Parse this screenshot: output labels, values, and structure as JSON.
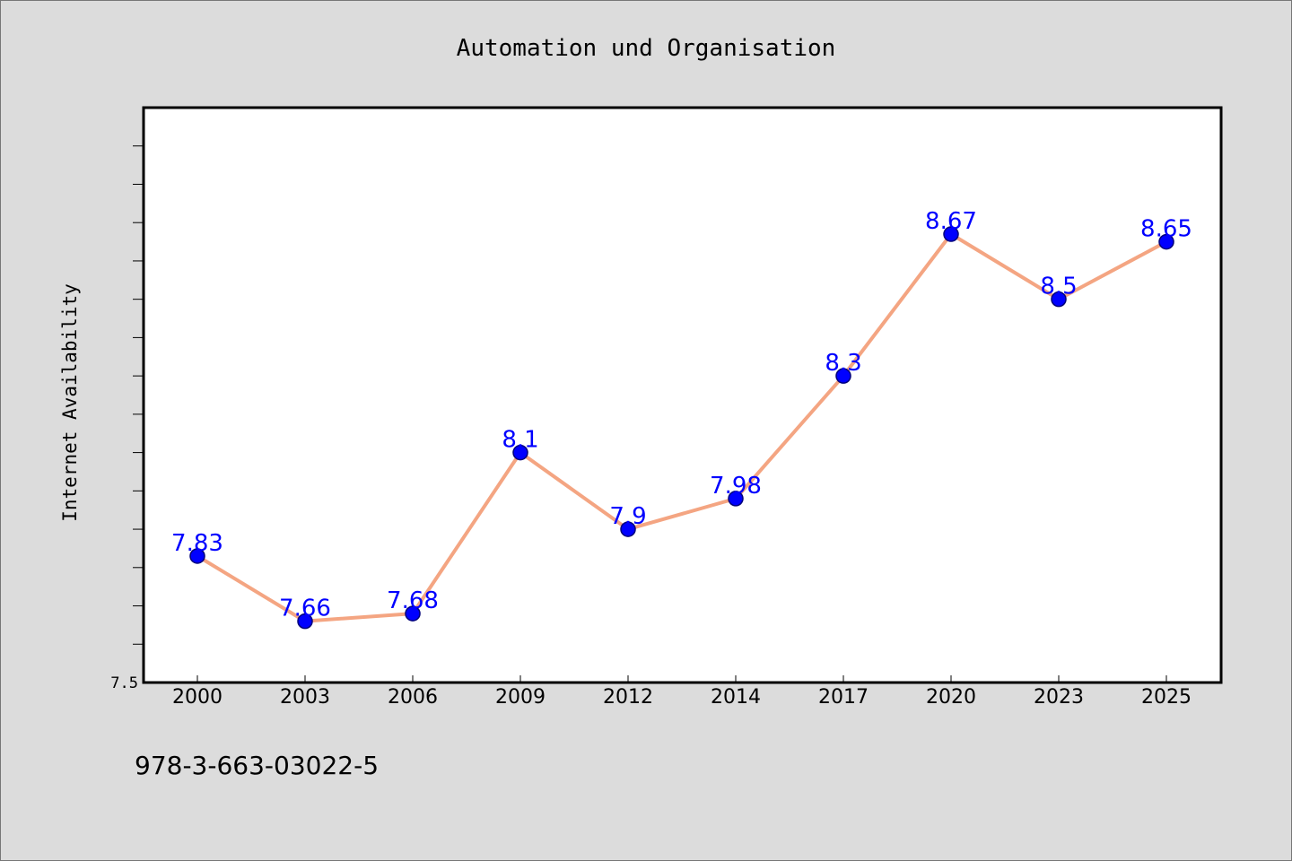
{
  "chart_data": {
    "type": "line",
    "title": "Automation und Organisation",
    "xlabel": "",
    "ylabel": "Internet Availability",
    "categories": [
      "2000",
      "2003",
      "2006",
      "2009",
      "2012",
      "2014",
      "2017",
      "2020",
      "2023",
      "2025"
    ],
    "series": [
      {
        "name": "",
        "values": [
          7.83,
          7.66,
          7.68,
          8.1,
          7.9,
          7.98,
          8.3,
          8.67,
          8.5,
          8.65
        ],
        "labels": [
          "7.83",
          "7.66",
          "7.68",
          "8.1",
          "7.9",
          "7.98",
          "8.3",
          "8.67",
          "8.5",
          "8.65"
        ]
      }
    ],
    "ylim": [
      7.5,
      9.0
    ],
    "yticks": [
      7.5
    ],
    "ytick_labels": [
      "7.5"
    ],
    "y_minor_step": 0.1,
    "grid": false,
    "legend": "none",
    "colors": {
      "line": "#f4a582",
      "marker": "#0000ff",
      "marker_edge": "#00007a",
      "value_label": "#0000ff",
      "plot_bg": "#ffffff",
      "figure_bg": "#dcdcdc"
    }
  },
  "footer_text": "978-3-663-03022-5"
}
